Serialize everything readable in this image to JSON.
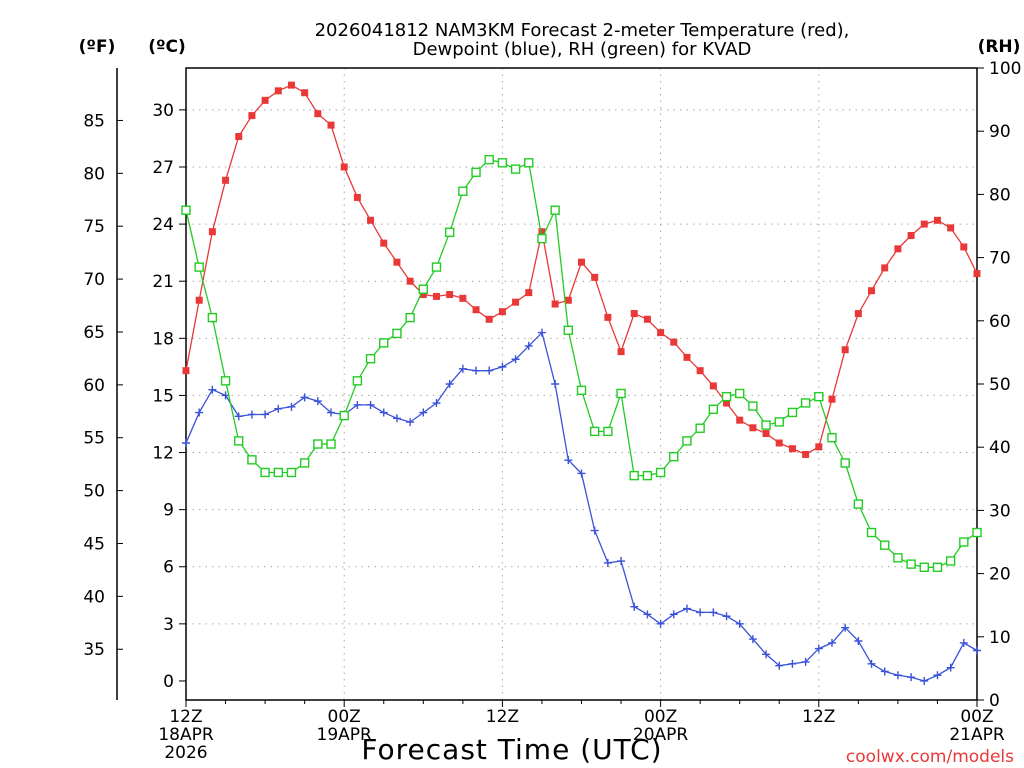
{
  "chart_data": {
    "type": "line",
    "title": "2026041812 NAM3KM Forecast 2-meter Temperature (red),",
    "subtitle": "Dewpoint (blue), RH (green) for KVAD",
    "xlabel": "Forecast Time (UTC)",
    "unit_labels": {
      "fahrenheit": "(ºF)",
      "celsius": "(ºC)",
      "rh": "(RH)"
    },
    "watermark": "coolwx.com/models",
    "x_ticks": [
      {
        "hour": 0,
        "l1": "12Z",
        "l2": "18APR",
        "l3": "2026"
      },
      {
        "hour": 12,
        "l1": "00Z",
        "l2": "19APR",
        "l3": ""
      },
      {
        "hour": 24,
        "l1": "12Z",
        "l2": "",
        "l3": ""
      },
      {
        "hour": 36,
        "l1": "00Z",
        "l2": "20APR",
        "l3": ""
      },
      {
        "hour": 48,
        "l1": "12Z",
        "l2": "",
        "l3": ""
      },
      {
        "hour": 60,
        "l1": "00Z",
        "l2": "21APR",
        "l3": ""
      }
    ],
    "xlim": [
      0,
      60
    ],
    "ylim_c": [
      -1,
      32.2
    ],
    "ylim_rh": [
      0,
      100
    ],
    "c_ticks": [
      0,
      3,
      6,
      9,
      12,
      15,
      18,
      21,
      24,
      27,
      30
    ],
    "f_ticks": [
      35,
      40,
      45,
      50,
      55,
      60,
      65,
      70,
      75,
      80,
      85
    ],
    "rh_ticks": [
      0,
      10,
      20,
      30,
      40,
      50,
      60,
      70,
      80,
      90,
      100
    ],
    "series": [
      {
        "name": "Temperature",
        "unit": "C",
        "color": "#e83838",
        "marker": "filled-square",
        "x": [
          0,
          1,
          2,
          3,
          4,
          5,
          6,
          7,
          8,
          9,
          10,
          11,
          12,
          13,
          14,
          15,
          16,
          17,
          18,
          19,
          20,
          21,
          22,
          23,
          24,
          25,
          26,
          27,
          28,
          29,
          30,
          31,
          32,
          33,
          34,
          35,
          36,
          37,
          38,
          39,
          40,
          41,
          42,
          43,
          44,
          45,
          46,
          47,
          48,
          49,
          50,
          51,
          52,
          53,
          54,
          55,
          56,
          57,
          58,
          59,
          60
        ],
        "values": [
          16.3,
          20.0,
          23.6,
          26.3,
          28.6,
          29.7,
          30.5,
          31.0,
          31.3,
          30.9,
          29.8,
          29.2,
          27.0,
          25.4,
          24.2,
          23.0,
          22.0,
          21.0,
          20.3,
          20.2,
          20.3,
          20.1,
          19.5,
          19.0,
          19.4,
          19.9,
          20.4,
          23.6,
          19.8,
          20.0,
          22.0,
          21.2,
          19.1,
          17.3,
          19.3,
          19.0,
          18.3,
          17.8,
          17.0,
          16.3,
          15.5,
          14.6,
          13.7,
          13.3,
          13.0,
          12.5,
          12.2,
          11.9,
          12.3,
          14.8,
          17.4,
          19.3,
          20.5,
          21.7,
          22.7,
          23.4,
          24.0,
          24.2,
          23.8,
          22.8,
          21.4
        ]
      },
      {
        "name": "Dewpoint",
        "unit": "C",
        "color": "#3a52d8",
        "marker": "plus",
        "x": [
          0,
          1,
          2,
          3,
          4,
          5,
          6,
          7,
          8,
          9,
          10,
          11,
          12,
          13,
          14,
          15,
          16,
          17,
          18,
          19,
          20,
          21,
          22,
          23,
          24,
          25,
          26,
          27,
          28,
          29,
          30,
          31,
          32,
          33,
          34,
          35,
          36,
          37,
          38,
          39,
          40,
          41,
          42,
          43,
          44,
          45,
          46,
          47,
          48,
          49,
          50,
          51,
          52,
          53,
          54,
          55,
          56,
          57,
          58,
          59,
          60
        ],
        "values": [
          12.5,
          14.1,
          15.3,
          15.0,
          13.9,
          14.0,
          14.0,
          14.3,
          14.4,
          14.9,
          14.7,
          14.1,
          14.0,
          14.5,
          14.5,
          14.1,
          13.8,
          13.6,
          14.1,
          14.6,
          15.6,
          16.4,
          16.3,
          16.3,
          16.5,
          16.9,
          17.6,
          18.3,
          15.6,
          11.6,
          10.9,
          7.9,
          6.2,
          6.3,
          3.9,
          3.5,
          3.0,
          3.5,
          3.8,
          3.6,
          3.6,
          3.4,
          3.0,
          2.2,
          1.4,
          0.8,
          0.9,
          1.0,
          1.7,
          2.0,
          2.8,
          2.1,
          0.9,
          0.5,
          0.3,
          0.2,
          0.0,
          0.3,
          0.7,
          2.0,
          1.6
        ]
      },
      {
        "name": "RH",
        "unit": "%",
        "color": "#22cc22",
        "marker": "open-square",
        "x": [
          0,
          1,
          2,
          3,
          4,
          5,
          6,
          7,
          8,
          9,
          10,
          11,
          12,
          13,
          14,
          15,
          16,
          17,
          18,
          19,
          20,
          21,
          22,
          23,
          24,
          25,
          26,
          27,
          28,
          29,
          30,
          31,
          32,
          33,
          34,
          35,
          36,
          37,
          38,
          39,
          40,
          41,
          42,
          43,
          44,
          45,
          46,
          47,
          48,
          49,
          50,
          51,
          52,
          53,
          54,
          55,
          56,
          57,
          58,
          59,
          60
        ],
        "values": [
          77.5,
          68.5,
          60.5,
          50.5,
          41.0,
          38.0,
          36.0,
          36.0,
          36.0,
          37.5,
          40.5,
          40.5,
          45.0,
          50.5,
          54.0,
          56.5,
          58.0,
          60.5,
          65.0,
          68.5,
          74.0,
          80.5,
          83.5,
          85.5,
          85.0,
          84.0,
          85.0,
          73.0,
          77.5,
          58.5,
          49.0,
          42.5,
          42.5,
          48.5,
          35.5,
          35.5,
          36.0,
          38.5,
          41.0,
          43.0,
          46.0,
          48.0,
          48.5,
          46.5,
          43.5,
          44.0,
          45.5,
          47.0,
          48.0,
          41.5,
          37.5,
          31.0,
          26.5,
          24.5,
          22.5,
          21.5,
          21.0,
          21.0,
          22.0,
          25.0,
          26.5
        ]
      }
    ]
  }
}
